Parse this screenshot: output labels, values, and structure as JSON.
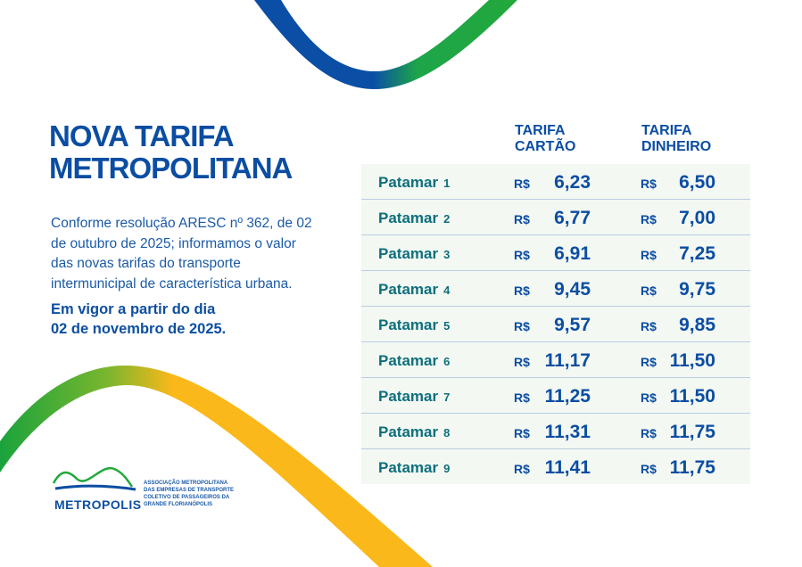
{
  "title": [
    "NOVA TARIFA",
    "METROPOLITANA"
  ],
  "description": "Conforme resolução ARESC nº 362, de 02 de outubro de 2025; informamos o valor das novas tarifas do transporte intermunicipal de característica urbana.",
  "effective": [
    "Em vigor a partir do dia",
    "02 de novembro de 2025."
  ],
  "logo": {
    "name": "METROPOLIS",
    "text": [
      "ASSOCIAÇÃO METROPOLITANA",
      "DAS EMPRESAS DE TRANSPORTE",
      "COLETIVO DE PASSAGEIROS DA",
      "GRANDE FLORIANÓPOLIS"
    ]
  },
  "table": {
    "headers": {
      "card": [
        "TARIFA",
        "CARTÃO"
      ],
      "cash": [
        "TARIFA",
        "DINHEIRO"
      ]
    },
    "currency": "R$",
    "rows": [
      {
        "label": "Patamar",
        "n": "1",
        "card": "6,23",
        "cash": "6,50"
      },
      {
        "label": "Patamar",
        "n": "2",
        "card": "6,77",
        "cash": "7,00"
      },
      {
        "label": "Patamar",
        "n": "3",
        "card": "6,91",
        "cash": "7,25"
      },
      {
        "label": "Patamar",
        "n": "4",
        "card": "9,45",
        "cash": "9,75"
      },
      {
        "label": "Patamar",
        "n": "5",
        "card": "9,57",
        "cash": "9,85"
      },
      {
        "label": "Patamar",
        "n": "6",
        "card": "11,17",
        "cash": "11,50"
      },
      {
        "label": "Patamar",
        "n": "7",
        "card": "11,25",
        "cash": "11,50"
      },
      {
        "label": "Patamar",
        "n": "8",
        "card": "11,31",
        "cash": "11,75"
      },
      {
        "label": "Patamar",
        "n": "9",
        "card": "11,41",
        "cash": "11,75"
      }
    ]
  },
  "colors": {
    "blue": "#0b4da2",
    "teal": "#0e6f7c",
    "green": "#1aa33c",
    "yellow": "#fbb81a"
  }
}
